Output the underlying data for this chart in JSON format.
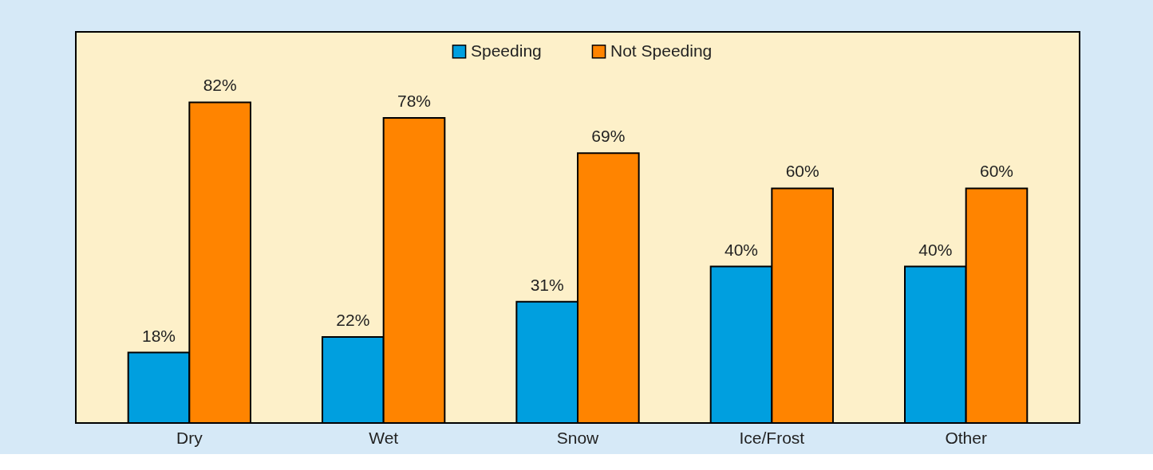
{
  "chart_data": {
    "type": "bar",
    "categories": [
      "Dry",
      "Wet",
      "Snow",
      "Ice/Frost",
      "Other"
    ],
    "ylim": [
      0,
      100
    ],
    "series": [
      {
        "name": "Speeding",
        "color": "#009fdf",
        "values": [
          18,
          22,
          31,
          40,
          40
        ],
        "value_labels": [
          "18%",
          "22%",
          "31%",
          "40%",
          "40%"
        ]
      },
      {
        "name": "Not Speeding",
        "color": "#ff8400",
        "values": [
          82,
          78,
          69,
          60,
          60
        ],
        "value_labels": [
          "82%",
          "78%",
          "69%",
          "60%",
          "60%"
        ]
      }
    ],
    "legend": "top"
  }
}
